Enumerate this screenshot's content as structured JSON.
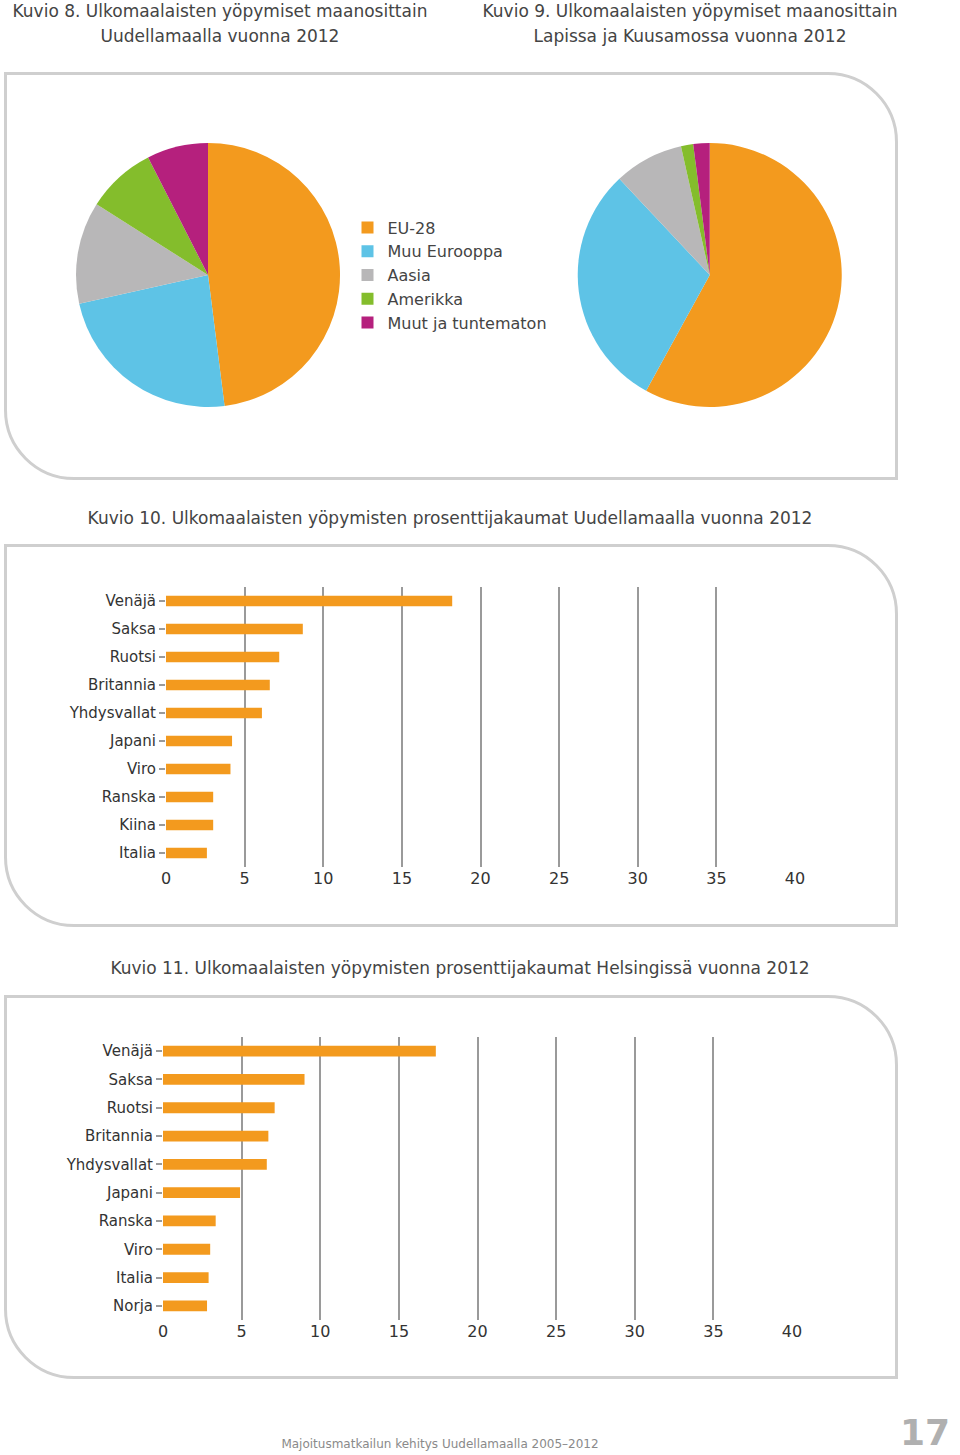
{
  "page": {
    "footer": "Majoitusmatkailun kehitys Uudellamaalla 2005–2012",
    "page_number": 17
  },
  "chart_data": [
    {
      "type": "pie",
      "title": "Kuvio 8. Ulkomaalaisten yöpymiset maanosittain\nUudellamaalla vuonna 2012",
      "categories": [
        "EU-28",
        "Muu Eurooppa",
        "Aasia",
        "Amerikka",
        "Muut ja tuntematon"
      ],
      "values": [
        48,
        23.5,
        12.5,
        8.5,
        7.5
      ],
      "colors": [
        "#f39a1e",
        "#5ec3e6",
        "#b8b7b8",
        "#84bd2c",
        "#b5207d"
      ],
      "legend": "center"
    },
    {
      "type": "pie",
      "title": "Kuvio 9. Ulkomaalaisten yöpymiset maanosittain\nLapissa ja Kuusamossa vuonna 2012",
      "categories": [
        "EU-28",
        "Muu Eurooppa",
        "Aasia",
        "Amerikka",
        "Muut ja tuntematon"
      ],
      "values": [
        58,
        30,
        8.5,
        1.5,
        2
      ],
      "colors": [
        "#f39a1e",
        "#5ec3e6",
        "#b8b7b8",
        "#84bd2c",
        "#b5207d"
      ],
      "legend": "center"
    },
    {
      "type": "bar",
      "orientation": "horizontal",
      "title": "Kuvio 10. Ulkomaalaisten yöpymisten prosenttijakaumat Uudellamaalla vuonna 2012",
      "categories": [
        "Venäjä",
        "Saksa",
        "Ruotsi",
        "Britannia",
        "Yhdysvallat",
        "Japani",
        "Viro",
        "Ranska",
        "Kiina",
        "Italia"
      ],
      "values": [
        18.2,
        8.7,
        7.2,
        6.6,
        6.1,
        4.2,
        4.1,
        3.0,
        3.0,
        2.6
      ],
      "color": "#f39a1e",
      "xlim": [
        0,
        40
      ],
      "xticks": [
        0,
        5,
        10,
        15,
        20,
        25,
        30,
        35,
        40
      ],
      "grid": true
    },
    {
      "type": "bar",
      "orientation": "horizontal",
      "title": "Kuvio 11. Ulkomaalaisten yöpymisten prosenttijakaumat Helsingissä vuonna 2012",
      "categories": [
        "Venäjä",
        "Saksa",
        "Ruotsi",
        "Britannia",
        "Yhdysvallat",
        "Japani",
        "Ranska",
        "Viro",
        "Italia",
        "Norja"
      ],
      "values": [
        17.35,
        9.0,
        7.1,
        6.7,
        6.6,
        4.9,
        3.35,
        3.0,
        2.9,
        2.8
      ],
      "color": "#f39a1e",
      "xlim": [
        0,
        40
      ],
      "xticks": [
        0,
        5,
        10,
        15,
        20,
        25,
        30,
        35,
        40
      ],
      "grid": true
    }
  ]
}
